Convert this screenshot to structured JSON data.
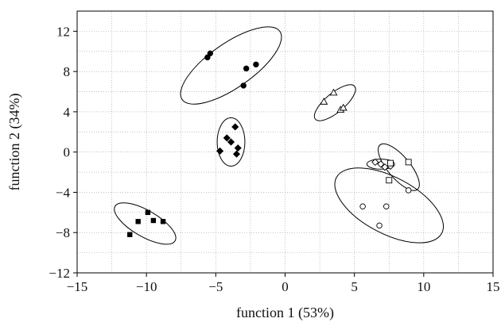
{
  "chart_data": {
    "type": "scatter",
    "title": "",
    "xlabel": "function 1 (53%)",
    "ylabel": "function 2 (34%)",
    "xlim": [
      -15,
      15
    ],
    "ylim": [
      -12,
      14
    ],
    "xticks": [
      -15,
      -10,
      -5,
      0,
      5,
      10,
      15
    ],
    "yticks": [
      -12,
      -8,
      -4,
      0,
      4,
      8,
      12
    ],
    "xtick_labels": [
      "−15",
      "−10",
      "−5",
      "0",
      "5",
      "10",
      "15"
    ],
    "ytick_labels": [
      "−12",
      "−8",
      "−4",
      "0",
      "4",
      "8",
      "12"
    ],
    "grid": true,
    "grid_style": "dotted",
    "series": [
      {
        "marker": "filled-circle",
        "points": [
          [
            -5.6,
            9.4
          ],
          [
            -5.4,
            9.8
          ],
          [
            -2.8,
            8.3
          ],
          [
            -2.1,
            8.7
          ],
          [
            -3.0,
            6.6
          ]
        ],
        "ellipse": {
          "cx": -3.9,
          "cy": 8.6,
          "rx": 4.3,
          "ry": 2.2,
          "angle": -35
        }
      },
      {
        "marker": "open-triangle",
        "points": [
          [
            2.8,
            5.0
          ],
          [
            3.5,
            5.9
          ],
          [
            4.0,
            4.2
          ],
          [
            4.2,
            4.4
          ]
        ],
        "ellipse": {
          "cx": 3.6,
          "cy": 4.9,
          "rx": 1.85,
          "ry": 0.95,
          "angle": -40
        }
      },
      {
        "marker": "filled-diamond",
        "points": [
          [
            -3.6,
            2.5
          ],
          [
            -3.9,
            1.0
          ],
          [
            -4.2,
            1.4
          ],
          [
            -3.4,
            0.4
          ],
          [
            -4.7,
            0.1
          ],
          [
            -3.5,
            -0.2
          ]
        ],
        "ellipse": {
          "cx": -3.9,
          "cy": 1.0,
          "rx": 1.0,
          "ry": 2.4,
          "angle": 0
        }
      },
      {
        "marker": "open-diamond",
        "points": [
          [
            6.5,
            -1.0
          ],
          [
            6.9,
            -1.2
          ],
          [
            7.2,
            -1.5
          ],
          [
            7.6,
            -1.4
          ]
        ],
        "ellipse": {
          "cx": 6.9,
          "cy": -1.2,
          "rx": 1.0,
          "ry": 0.5,
          "angle": 0
        }
      },
      {
        "marker": "open-square",
        "points": [
          [
            7.6,
            -1.1
          ],
          [
            8.9,
            -1.0
          ],
          [
            7.5,
            -2.8
          ]
        ],
        "ellipse": {
          "cx": 8.2,
          "cy": -1.5,
          "rx": 2.1,
          "ry": 1.1,
          "angle": 50
        }
      },
      {
        "marker": "open-circle",
        "points": [
          [
            5.6,
            -5.4
          ],
          [
            7.3,
            -5.4
          ],
          [
            8.9,
            -3.8
          ],
          [
            6.8,
            -7.3
          ]
        ],
        "ellipse": {
          "cx": 7.5,
          "cy": -5.3,
          "rx": 4.3,
          "ry": 2.8,
          "angle": 28
        }
      },
      {
        "marker": "filled-square",
        "points": [
          [
            -11.2,
            -8.2
          ],
          [
            -10.6,
            -6.9
          ],
          [
            -9.9,
            -6.0
          ],
          [
            -9.5,
            -6.8
          ],
          [
            -8.8,
            -6.9
          ]
        ],
        "ellipse": {
          "cx": -10.1,
          "cy": -7.1,
          "rx": 2.5,
          "ry": 1.3,
          "angle": 30
        }
      }
    ]
  }
}
